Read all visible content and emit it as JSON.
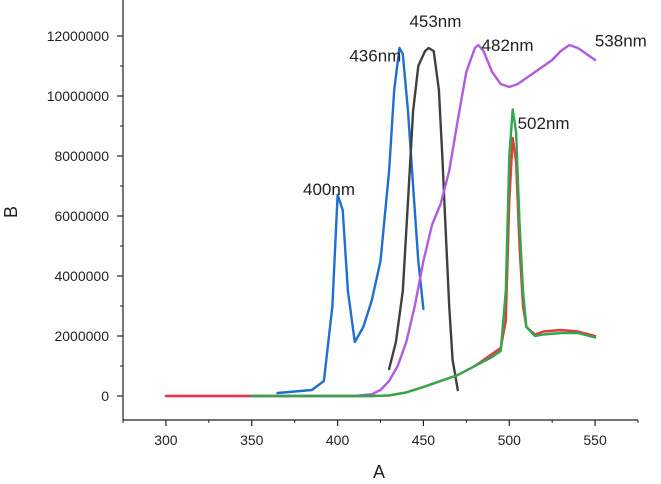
{
  "chart_data": {
    "type": "line",
    "title": "",
    "xlabel": "A",
    "ylabel": "B",
    "xlim": [
      275,
      575
    ],
    "ylim": [
      -800000,
      13200000
    ],
    "x_ticks": [
      300,
      350,
      400,
      450,
      500,
      550
    ],
    "x_tick_labels": [
      "300",
      "350",
      "400",
      "450",
      "500",
      "550"
    ],
    "y_ticks": [
      0,
      2000000,
      4000000,
      6000000,
      8000000,
      10000000,
      12000000
    ],
    "y_tick_labels": [
      "0",
      "2000000",
      "4000000",
      "6000000",
      "8000000",
      "10000000",
      "12000000"
    ],
    "grid": false,
    "legend": "none",
    "series": [
      {
        "color": "#1f6fd1",
        "points": [
          [
            365,
            100000
          ],
          [
            385,
            200000
          ],
          [
            392,
            500000
          ],
          [
            397,
            3000000
          ],
          [
            400,
            6700000
          ],
          [
            403,
            6200000
          ],
          [
            406,
            3500000
          ],
          [
            410,
            1800000
          ],
          [
            415,
            2300000
          ],
          [
            420,
            3200000
          ],
          [
            425,
            4500000
          ],
          [
            430,
            7500000
          ],
          [
            433,
            10200000
          ],
          [
            436,
            11600000
          ],
          [
            438,
            11400000
          ],
          [
            441,
            9500000
          ],
          [
            444,
            7000000
          ],
          [
            447,
            4500000
          ],
          [
            450,
            2900000
          ]
        ]
      },
      {
        "color": "#404040",
        "points": [
          [
            430,
            900000
          ],
          [
            434,
            1800000
          ],
          [
            438,
            3500000
          ],
          [
            441,
            6500000
          ],
          [
            444,
            9500000
          ],
          [
            447,
            11000000
          ],
          [
            451,
            11500000
          ],
          [
            453,
            11600000
          ],
          [
            456,
            11500000
          ],
          [
            459,
            10200000
          ],
          [
            461,
            8000000
          ],
          [
            463,
            5500000
          ],
          [
            465,
            3000000
          ],
          [
            467,
            1200000
          ],
          [
            470,
            200000
          ]
        ]
      },
      {
        "color": "#b05be0",
        "points": [
          [
            300,
            0
          ],
          [
            350,
            0
          ],
          [
            410,
            0
          ],
          [
            420,
            60000
          ],
          [
            425,
            200000
          ],
          [
            430,
            500000
          ],
          [
            435,
            1000000
          ],
          [
            440,
            1800000
          ],
          [
            445,
            3000000
          ],
          [
            450,
            4500000
          ],
          [
            455,
            5700000
          ],
          [
            460,
            6400000
          ],
          [
            465,
            7500000
          ],
          [
            470,
            9200000
          ],
          [
            475,
            10800000
          ],
          [
            480,
            11600000
          ],
          [
            482,
            11700000
          ],
          [
            485,
            11500000
          ],
          [
            490,
            10800000
          ],
          [
            495,
            10400000
          ],
          [
            500,
            10300000
          ],
          [
            505,
            10400000
          ],
          [
            510,
            10600000
          ],
          [
            515,
            10800000
          ],
          [
            520,
            11000000
          ],
          [
            525,
            11200000
          ],
          [
            530,
            11500000
          ],
          [
            535,
            11700000
          ],
          [
            540,
            11600000
          ],
          [
            545,
            11400000
          ],
          [
            550,
            11200000
          ]
        ]
      },
      {
        "color": "#e23b3b",
        "points": [
          [
            300,
            0
          ],
          [
            350,
            0
          ],
          [
            400,
            0
          ],
          [
            420,
            0
          ],
          [
            430,
            20000
          ],
          [
            440,
            120000
          ],
          [
            450,
            300000
          ],
          [
            460,
            500000
          ],
          [
            470,
            700000
          ],
          [
            480,
            1000000
          ],
          [
            490,
            1400000
          ],
          [
            495,
            1600000
          ],
          [
            498,
            2500000
          ],
          [
            500,
            6500000
          ],
          [
            502,
            8600000
          ],
          [
            504,
            7800000
          ],
          [
            506,
            5000000
          ],
          [
            508,
            3000000
          ],
          [
            510,
            2300000
          ],
          [
            515,
            2050000
          ],
          [
            520,
            2150000
          ],
          [
            530,
            2200000
          ],
          [
            540,
            2150000
          ],
          [
            550,
            2000000
          ]
        ]
      },
      {
        "color": "#2fa84f",
        "points": [
          [
            350,
            0
          ],
          [
            400,
            0
          ],
          [
            420,
            0
          ],
          [
            430,
            20000
          ],
          [
            440,
            120000
          ],
          [
            450,
            300000
          ],
          [
            460,
            500000
          ],
          [
            470,
            700000
          ],
          [
            480,
            1000000
          ],
          [
            490,
            1300000
          ],
          [
            495,
            1500000
          ],
          [
            498,
            3500000
          ],
          [
            500,
            8000000
          ],
          [
            502,
            9550000
          ],
          [
            504,
            8800000
          ],
          [
            506,
            5800000
          ],
          [
            508,
            3500000
          ],
          [
            510,
            2300000
          ],
          [
            515,
            2000000
          ],
          [
            520,
            2050000
          ],
          [
            530,
            2100000
          ],
          [
            540,
            2100000
          ],
          [
            550,
            1950000
          ]
        ]
      }
    ],
    "annotations": [
      {
        "text": "400nm",
        "x": 395,
        "y": 6700000
      },
      {
        "text": "436nm",
        "x": 422,
        "y": 11150000
      },
      {
        "text": "453nm",
        "x": 457,
        "y": 12300000
      },
      {
        "text": "482nm",
        "x": 499,
        "y": 11500000
      },
      {
        "text": "538nm",
        "x": 565,
        "y": 11650000
      },
      {
        "text": "502nm",
        "x": 520,
        "y": 8900000
      }
    ]
  }
}
